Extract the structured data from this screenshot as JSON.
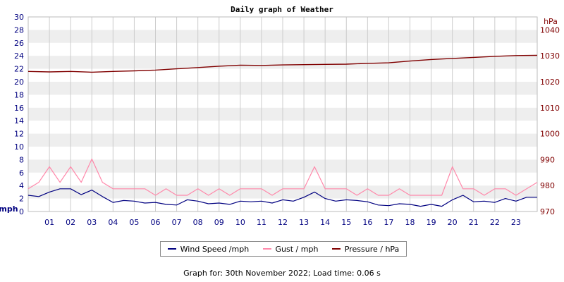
{
  "chart_data": {
    "type": "line",
    "title": "Daily graph of Weather",
    "left_axis": {
      "unit_label": "mph",
      "ylim": [
        0,
        30
      ],
      "ticks": [
        "0",
        "2",
        "4",
        "6",
        "8",
        "10",
        "12",
        "14",
        "16",
        "18",
        "20",
        "22",
        "24",
        "26",
        "28",
        "30"
      ],
      "tick_values": [
        0,
        2,
        4,
        6,
        8,
        10,
        12,
        14,
        16,
        18,
        20,
        22,
        24,
        26,
        28,
        30
      ]
    },
    "right_axis": {
      "unit_label": "hPa",
      "ylim": [
        970,
        1045
      ],
      "ticks": [
        "970",
        "980",
        "990",
        "1000",
        "1010",
        "1020",
        "1030",
        "1040"
      ],
      "tick_values": [
        970,
        980,
        990,
        1000,
        1010,
        1020,
        1030,
        1040
      ]
    },
    "x_axis": {
      "xlim": [
        0,
        24
      ],
      "ticks": [
        "01",
        "02",
        "03",
        "04",
        "05",
        "06",
        "07",
        "08",
        "09",
        "10",
        "11",
        "12",
        "13",
        "14",
        "15",
        "16",
        "17",
        "18",
        "19",
        "20",
        "21",
        "22",
        "23"
      ]
    },
    "grid": true,
    "colors": {
      "wind": "#000080",
      "gust": "#ff88aa",
      "pressure": "#800000",
      "left_axis_text": "#000080",
      "right_axis_text": "#800000",
      "band": "#eeeeee",
      "gridline": "#cccccc"
    },
    "legend_position": "bottom-center",
    "series": [
      {
        "name": "Wind Speed /mph",
        "axis": "left",
        "x": [
          0,
          0.5,
          1,
          1.5,
          2,
          2.5,
          3,
          3.5,
          4,
          4.5,
          5,
          5.5,
          6,
          6.5,
          7,
          7.5,
          8,
          8.5,
          9,
          9.5,
          10,
          10.5,
          11,
          11.5,
          12,
          12.5,
          13,
          13.5,
          14,
          14.5,
          15,
          15.5,
          16,
          16.5,
          17,
          17.5,
          18,
          18.5,
          19,
          19.5,
          20,
          20.5,
          21,
          21.5,
          22,
          22.5,
          23,
          23.5,
          24
        ],
        "values": [
          2.5,
          2.3,
          3,
          3.5,
          3.5,
          2.6,
          3.3,
          2.3,
          1.4,
          1.7,
          1.6,
          1.3,
          1.4,
          1.1,
          1,
          1.8,
          1.6,
          1.2,
          1.3,
          1.1,
          1.6,
          1.5,
          1.6,
          1.3,
          1.8,
          1.6,
          2.2,
          3,
          2,
          1.6,
          1.8,
          1.7,
          1.5,
          1,
          0.9,
          1.2,
          1.1,
          0.8,
          1.1,
          0.8,
          1.8,
          2.5,
          1.5,
          1.6,
          1.4,
          2,
          1.6,
          2.2,
          2.2
        ]
      },
      {
        "name": "Gust / mph",
        "axis": "left",
        "x": [
          0,
          0.5,
          1,
          1.5,
          2,
          2.5,
          3,
          3.5,
          4,
          4.5,
          5,
          5.5,
          6,
          6.5,
          7,
          7.5,
          8,
          8.5,
          9,
          9.5,
          10,
          10.5,
          11,
          11.5,
          12,
          12.5,
          13,
          13.5,
          14,
          14.5,
          15,
          15.5,
          16,
          16.5,
          17,
          17.5,
          18,
          18.5,
          19,
          19.5,
          20,
          20.5,
          21,
          21.5,
          22,
          22.5,
          23,
          23.5,
          24
        ],
        "values": [
          3.5,
          4.5,
          6.9,
          4.5,
          6.9,
          4.5,
          8.1,
          4.5,
          3.5,
          3.5,
          3.5,
          3.5,
          2.5,
          3.5,
          2.5,
          2.5,
          3.5,
          2.5,
          3.5,
          2.5,
          3.5,
          3.5,
          3.5,
          2.5,
          3.5,
          3.5,
          3.5,
          6.9,
          3.5,
          3.5,
          3.5,
          2.5,
          3.5,
          2.5,
          2.5,
          3.5,
          2.5,
          2.5,
          2.5,
          2.5,
          6.9,
          3.5,
          3.5,
          2.5,
          3.5,
          3.5,
          2.5,
          3.5,
          4.5
        ]
      },
      {
        "name": "Pressure / hPa",
        "axis": "right",
        "x": [
          0,
          1,
          2,
          3,
          4,
          5,
          6,
          7,
          8,
          9,
          10,
          11,
          12,
          13,
          14,
          15,
          16,
          17,
          18,
          19,
          20,
          21,
          22,
          23,
          24
        ],
        "values": [
          1024,
          1023.8,
          1024,
          1023.7,
          1024,
          1024.2,
          1024.5,
          1025,
          1025.5,
          1026,
          1026.4,
          1026.3,
          1026.5,
          1026.6,
          1026.7,
          1026.8,
          1027.1,
          1027.3,
          1028,
          1028.6,
          1029,
          1029.4,
          1029.8,
          1030.1,
          1030.2
        ]
      }
    ]
  },
  "legend": {
    "wind_label": "Wind Speed /mph",
    "gust_label": "Gust / mph",
    "pressure_label": "Pressure / hPa"
  },
  "footer": "Graph for: 30th November 2022; Load time: 0.06 s"
}
